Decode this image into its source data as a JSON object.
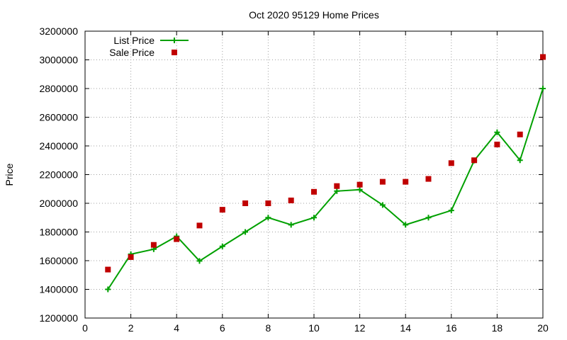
{
  "chart_data": {
    "type": "line",
    "title": "Oct 2020 95129 Home Prices",
    "xlabel": "",
    "ylabel": "Price",
    "xlim": [
      0,
      20
    ],
    "ylim": [
      1200000,
      3200000
    ],
    "x_ticks": [
      0,
      2,
      4,
      6,
      8,
      10,
      12,
      14,
      16,
      18,
      20
    ],
    "y_ticks": [
      1200000,
      1400000,
      1600000,
      1800000,
      2000000,
      2200000,
      2400000,
      2600000,
      2800000,
      3000000,
      3200000
    ],
    "x_tick_labels": [
      "0",
      "2",
      "4",
      "6",
      "8",
      "10",
      "12",
      "14",
      "16",
      "18",
      "20"
    ],
    "y_tick_labels": [
      "1200000",
      "1400000",
      "1600000",
      "1800000",
      "2000000",
      "2200000",
      "2400000",
      "2600000",
      "2800000",
      "3000000",
      "3200000"
    ],
    "grid": true,
    "legend_position": "top-left",
    "x": [
      1,
      2,
      3,
      4,
      5,
      6,
      7,
      8,
      9,
      10,
      11,
      12,
      13,
      14,
      15,
      16,
      17,
      18,
      19,
      20
    ],
    "series": [
      {
        "name": "List Price",
        "type": "line",
        "marker": "plus",
        "color": "#00a000",
        "values": [
          1400000,
          1645000,
          1680000,
          1770000,
          1598000,
          1700000,
          1800000,
          1900000,
          1850000,
          1900000,
          2085000,
          2095000,
          1988000,
          1850000,
          1900000,
          1950000,
          2298000,
          2495000,
          2300000,
          2800000
        ]
      },
      {
        "name": "Sale Price",
        "type": "scatter",
        "marker": "square",
        "color": "#c00000",
        "values": [
          1538000,
          1625000,
          1710000,
          1750000,
          1845000,
          1955000,
          2000000,
          2000000,
          2020000,
          2080000,
          2120000,
          2130000,
          2150000,
          2150000,
          2170000,
          2280000,
          2300000,
          2410000,
          2480000,
          3020000
        ]
      }
    ]
  }
}
